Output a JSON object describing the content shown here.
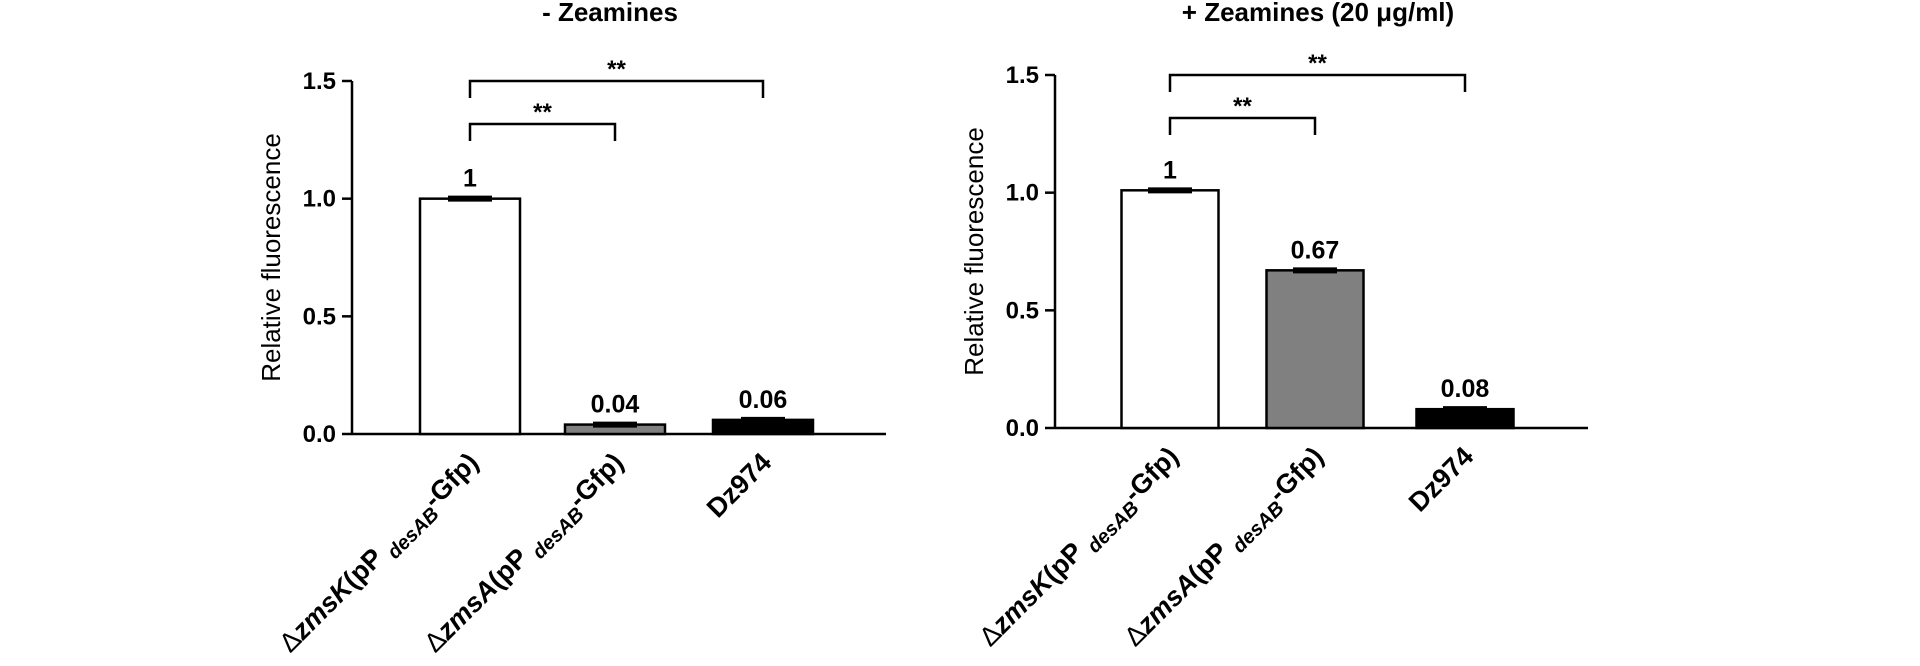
{
  "chart_data": [
    {
      "type": "bar",
      "title": "- Zeamines",
      "ylabel": "Relative fluorescence",
      "ylim": [
        0,
        1.5
      ],
      "yticks": [
        "0.0",
        "0.5",
        "1.0",
        "1.5"
      ],
      "categories": [
        {
          "prefix": "Δ",
          "gene": "zmsK",
          "mid": "(pP ",
          "sub": "desAB",
          "suffix": "-Gfp)"
        },
        {
          "prefix": "Δ",
          "gene": "zmsA",
          "mid": "(pP ",
          "sub": "desAB",
          "suffix": "-Gfp)"
        },
        {
          "prefix": "",
          "gene": "",
          "mid": "Dz974",
          "sub": "",
          "suffix": ""
        }
      ],
      "values": [
        1.0,
        0.04,
        0.06
      ],
      "value_labels": [
        "1",
        "0.04",
        "0.06"
      ],
      "bar_colors": [
        "#ffffff",
        "#808080",
        "#000000"
      ],
      "significance": [
        {
          "from": 0,
          "to": 1,
          "label": "**"
        },
        {
          "from": 0,
          "to": 2,
          "label": "**"
        }
      ]
    },
    {
      "type": "bar",
      "title": "+ Zeamines (20 μg/ml)",
      "ylabel": "Relative fluorescence",
      "ylim": [
        0,
        1.5
      ],
      "yticks": [
        "0.0",
        "0.5",
        "1.0",
        "1.5"
      ],
      "categories": [
        {
          "prefix": "Δ",
          "gene": "zmsK",
          "mid": "(pP ",
          "sub": "desAB",
          "suffix": "-Gfp)"
        },
        {
          "prefix": "Δ",
          "gene": "zmsA",
          "mid": "(pP ",
          "sub": "desAB",
          "suffix": "-Gfp)"
        },
        {
          "prefix": "",
          "gene": "",
          "mid": "Dz974",
          "sub": "",
          "suffix": ""
        }
      ],
      "values": [
        1.01,
        0.67,
        0.08
      ],
      "value_labels": [
        "1",
        "0.67",
        "0.08"
      ],
      "bar_colors": [
        "#ffffff",
        "#808080",
        "#000000"
      ],
      "significance": [
        {
          "from": 0,
          "to": 1,
          "label": "**"
        },
        {
          "from": 0,
          "to": 2,
          "label": "**"
        }
      ]
    }
  ]
}
